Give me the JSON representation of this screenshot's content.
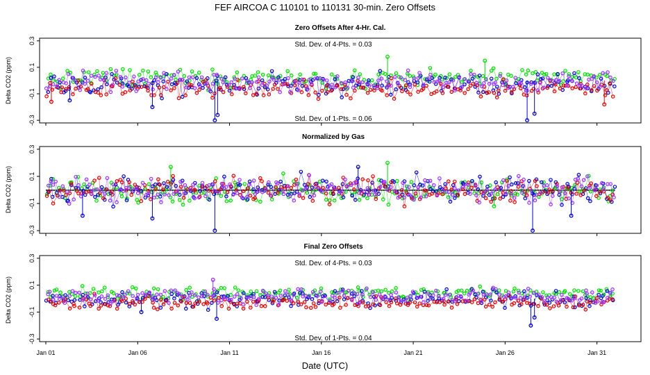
{
  "title": "FEF   AIRCOA C  110101 to 110131   30-min. Zero Offsets",
  "xlabel": "Date (UTC)",
  "colors": {
    "green": "#00dd00",
    "blue": "#0000cc",
    "red": "#dd0000",
    "purple": "#9933ff",
    "black": "#000000",
    "gray": "#888888"
  },
  "chart_data": {
    "type": "scatter",
    "xlim": [
      0,
      31.3
    ],
    "x_ticks": [
      {
        "x": 0,
        "label": "Jan 01"
      },
      {
        "x": 5,
        "label": "Jan 06"
      },
      {
        "x": 10,
        "label": "Jan 11"
      },
      {
        "x": 15,
        "label": "Jan 16"
      },
      {
        "x": 20,
        "label": "Jan 21"
      },
      {
        "x": 25,
        "label": "Jan 26"
      },
      {
        "x": 30,
        "label": "Jan 31"
      }
    ],
    "y_ticks": [
      {
        "y": -0.3,
        "label": "-0.3"
      },
      {
        "y": -0.1,
        "label": "-0.1"
      },
      {
        "y": 0.1,
        "label": "0.1"
      },
      {
        "y": 0.3,
        "label": "0.3"
      }
    ],
    "panels": [
      {
        "title": "Zero Offsets After 4-Hr. Cal.",
        "ylabel": "Delta CO2 (ppm)",
        "ylim": [
          -0.32,
          0.32
        ],
        "annotation_top": "Std. Dev. of 4-Pts. =  0.03",
        "annotation_bottom": "Std. Dev. of 1-Pts. =  0.06",
        "series": [
          {
            "name": "green",
            "color": "#00dd00",
            "mean": 0.02,
            "spread": 0.035
          },
          {
            "name": "blue",
            "color": "#0000cc",
            "mean": -0.03,
            "spread": 0.04
          },
          {
            "name": "red",
            "color": "#dd0000",
            "mean": -0.06,
            "spread": 0.035
          },
          {
            "name": "purple",
            "color": "#9933ff",
            "mean": -0.01,
            "spread": 0.035
          }
        ],
        "outliers": [
          {
            "x": 9.2,
            "y": -0.3,
            "color": "#0000cc"
          },
          {
            "x": 9.35,
            "y": -0.26,
            "color": "#0000cc"
          },
          {
            "x": 26.2,
            "y": -0.3,
            "color": "#0000cc"
          },
          {
            "x": 26.6,
            "y": -0.25,
            "color": "#0000cc"
          },
          {
            "x": 18.6,
            "y": 0.18,
            "color": "#00dd00"
          },
          {
            "x": 23.9,
            "y": 0.15,
            "color": "#00dd00"
          },
          {
            "x": 1.3,
            "y": -0.15,
            "color": "#0000cc"
          },
          {
            "x": 5.8,
            "y": -0.2,
            "color": "#0000cc"
          },
          {
            "x": 0.3,
            "y": -0.16,
            "color": "#dd0000"
          },
          {
            "x": 30.4,
            "y": -0.18,
            "color": "#dd0000"
          }
        ]
      },
      {
        "title": "Normalized by Gas",
        "ylabel": "Delta CO2 (ppm)",
        "ylim": [
          -0.32,
          0.32
        ],
        "annotation_top": "",
        "annotation_bottom": "",
        "series": [
          {
            "name": "green",
            "color": "#00dd00",
            "mean": 0.0,
            "spread": 0.045
          },
          {
            "name": "blue",
            "color": "#0000cc",
            "mean": 0.0,
            "spread": 0.05
          },
          {
            "name": "red",
            "color": "#dd0000",
            "mean": 0.0,
            "spread": 0.045
          },
          {
            "name": "purple",
            "color": "#9933ff",
            "mean": 0.0,
            "spread": 0.045
          }
        ],
        "outliers": [
          {
            "x": 9.2,
            "y": -0.3,
            "color": "#0000cc"
          },
          {
            "x": 26.5,
            "y": -0.3,
            "color": "#0000cc"
          },
          {
            "x": 18.6,
            "y": 0.2,
            "color": "#00dd00"
          },
          {
            "x": 17.0,
            "y": 0.17,
            "color": "#0000cc"
          },
          {
            "x": 2.0,
            "y": -0.19,
            "color": "#0000cc"
          },
          {
            "x": 5.8,
            "y": -0.21,
            "color": "#0000cc"
          },
          {
            "x": 28.6,
            "y": -0.19,
            "color": "#0000cc"
          },
          {
            "x": 24.4,
            "y": -0.12,
            "color": "#00dd00"
          },
          {
            "x": 6.8,
            "y": 0.17,
            "color": "#00dd00"
          }
        ]
      },
      {
        "title": "Final Zero Offsets",
        "ylabel": "Delta CO2 (ppm)",
        "ylim": [
          -0.32,
          0.32
        ],
        "annotation_top": "Std. Dev. of 4-Pts. =  0.03",
        "annotation_bottom": "Std. Dev. of 1-Pts. =  0.04",
        "series": [
          {
            "name": "green",
            "color": "#00dd00",
            "mean": 0.04,
            "spread": 0.025
          },
          {
            "name": "blue",
            "color": "#0000cc",
            "mean": 0.0,
            "spread": 0.03
          },
          {
            "name": "red",
            "color": "#dd0000",
            "mean": -0.03,
            "spread": 0.025
          },
          {
            "name": "purple",
            "color": "#9933ff",
            "mean": 0.02,
            "spread": 0.028
          }
        ],
        "outliers": [
          {
            "x": 9.1,
            "y": 0.14,
            "color": "#9933ff"
          },
          {
            "x": 9.3,
            "y": -0.15,
            "color": "#0000cc"
          },
          {
            "x": 26.4,
            "y": -0.2,
            "color": "#0000cc"
          },
          {
            "x": 26.6,
            "y": -0.14,
            "color": "#0000cc"
          },
          {
            "x": 5.2,
            "y": -0.1,
            "color": "#0000cc"
          }
        ]
      }
    ]
  }
}
